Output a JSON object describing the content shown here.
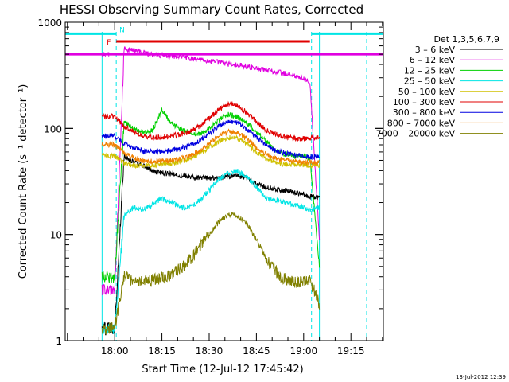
{
  "chart_data": {
    "type": "line",
    "title": "HESSI Observing Summary Count Rates, Corrected",
    "xlabel": "Start Time (12-Jul-12 17:45:42)",
    "ylabel": "Corrected Count Rate (s⁻¹ detector⁻¹)",
    "footer": "13-Jul-2012 12:39",
    "legend_title": "Det 1,3,5,6,7,9",
    "legend_position": "right",
    "y_scale": "log",
    "ylim": [
      1,
      1000
    ],
    "xlim_minutes": [
      -15.7,
      85.3
    ],
    "x_ticks": [
      {
        "t": 0,
        "label": "18:00"
      },
      {
        "t": 15,
        "label": "18:15"
      },
      {
        "t": 30,
        "label": "18:30"
      },
      {
        "t": 45,
        "label": "18:45"
      },
      {
        "t": 60,
        "label": "19:00"
      },
      {
        "t": 75,
        "label": "19:15"
      }
    ],
    "y_ticks": [
      {
        "v": 1,
        "label": "1"
      },
      {
        "v": 10,
        "label": "10"
      },
      {
        "v": 100,
        "label": "100"
      },
      {
        "v": 1000,
        "label": "1000"
      }
    ],
    "x_units_note": "minutes after 18:00 UT",
    "data_window": [
      -4,
      65
    ],
    "flag_bars": [
      {
        "label": "N",
        "color": "#00e5e5",
        "y": 780,
        "segments": [
          [
            -16,
            0.5
          ],
          [
            62.5,
            86
          ]
        ]
      },
      {
        "label": "F",
        "color": "#e00000",
        "y": 660,
        "segments": [
          [
            0.5,
            62
          ]
        ]
      },
      {
        "label": "A1",
        "color": "#e000e0",
        "y": 500,
        "segments": [
          [
            -16,
            86
          ]
        ]
      }
    ],
    "series": [
      {
        "name": "3 – 6 keV",
        "color": "#000000",
        "t": [
          -4,
          0,
          3,
          6,
          9,
          12,
          15,
          18,
          21,
          24,
          27,
          30,
          33,
          36,
          39,
          42,
          45,
          48,
          51,
          54,
          57,
          60,
          62,
          65
        ],
        "v": [
          1.3,
          1.3,
          55,
          48,
          45,
          40,
          38,
          37,
          36,
          35,
          34,
          34,
          34,
          35,
          36,
          34,
          30,
          28,
          27,
          26,
          25,
          24,
          23,
          22
        ]
      },
      {
        "name": "6 – 12 keV",
        "color": "#e000e0",
        "t": [
          -4,
          0,
          3,
          6,
          9,
          12,
          15,
          18,
          21,
          24,
          27,
          30,
          33,
          36,
          39,
          42,
          45,
          48,
          51,
          54,
          57,
          60,
          62,
          65
        ],
        "v": [
          3,
          3,
          560,
          540,
          520,
          500,
          490,
          480,
          470,
          455,
          440,
          430,
          420,
          405,
          395,
          385,
          370,
          355,
          340,
          330,
          315,
          300,
          270,
          9
        ]
      },
      {
        "name": "12 – 25 keV",
        "color": "#00d000",
        "t": [
          -4,
          0,
          3,
          6,
          9,
          12,
          15,
          18,
          21,
          24,
          27,
          30,
          33,
          36,
          39,
          42,
          45,
          48,
          51,
          54,
          57,
          60,
          62,
          65
        ],
        "v": [
          4,
          4,
          115,
          100,
          92,
          95,
          150,
          110,
          98,
          92,
          88,
          100,
          120,
          135,
          128,
          112,
          92,
          75,
          62,
          57,
          55,
          55,
          53,
          5
        ]
      },
      {
        "name": "25 – 50 keV",
        "color": "#00e5e5",
        "t": [
          -4,
          0,
          3,
          6,
          9,
          12,
          15,
          18,
          21,
          24,
          27,
          30,
          33,
          36,
          39,
          42,
          45,
          48,
          51,
          54,
          57,
          60,
          62,
          65
        ],
        "v": [
          1.3,
          1.3,
          15,
          18,
          17,
          19,
          22,
          20,
          18,
          18,
          21,
          26,
          33,
          38,
          40,
          35,
          28,
          22,
          21,
          20,
          19,
          18,
          17,
          18
        ]
      },
      {
        "name": "50 – 100 keV",
        "color": "#d0c000",
        "t": [
          -4,
          0,
          3,
          6,
          9,
          12,
          15,
          18,
          21,
          24,
          27,
          30,
          33,
          36,
          39,
          42,
          45,
          48,
          51,
          54,
          57,
          60,
          62,
          65
        ],
        "v": [
          55,
          55,
          47,
          45,
          44,
          45,
          46,
          47,
          49,
          52,
          58,
          66,
          76,
          82,
          80,
          72,
          60,
          52,
          48,
          46,
          46,
          45,
          45,
          45
        ]
      },
      {
        "name": "100 – 300 keV",
        "color": "#e00000",
        "t": [
          -4,
          0,
          3,
          6,
          9,
          12,
          15,
          18,
          21,
          24,
          27,
          30,
          33,
          36,
          39,
          42,
          45,
          48,
          51,
          54,
          57,
          60,
          62,
          65
        ],
        "v": [
          130,
          130,
          105,
          93,
          85,
          82,
          83,
          85,
          88,
          93,
          105,
          125,
          150,
          172,
          165,
          140,
          115,
          97,
          88,
          83,
          80,
          80,
          80,
          82
        ]
      },
      {
        "name": "300 – 800 keV",
        "color": "#0000e0",
        "t": [
          -4,
          0,
          3,
          6,
          9,
          12,
          15,
          18,
          21,
          24,
          27,
          30,
          33,
          36,
          39,
          42,
          45,
          48,
          51,
          54,
          57,
          60,
          62,
          65
        ],
        "v": [
          85,
          85,
          72,
          66,
          61,
          60,
          61,
          62,
          65,
          69,
          77,
          90,
          105,
          118,
          113,
          98,
          82,
          70,
          62,
          58,
          56,
          55,
          54,
          55
        ]
      },
      {
        "name": "800 – 7000 keV",
        "color": "#f08000",
        "t": [
          -4,
          0,
          3,
          6,
          9,
          12,
          15,
          18,
          21,
          24,
          27,
          30,
          33,
          36,
          39,
          42,
          45,
          48,
          51,
          54,
          57,
          60,
          62,
          65
        ],
        "v": [
          70,
          70,
          58,
          53,
          50,
          49,
          49,
          50,
          52,
          55,
          62,
          72,
          85,
          93,
          90,
          80,
          66,
          57,
          52,
          50,
          49,
          48,
          48,
          48
        ]
      },
      {
        "name": "7000 – 20000 keV",
        "color": "#808000",
        "t": [
          -4,
          0,
          3,
          6,
          9,
          12,
          15,
          18,
          21,
          24,
          27,
          30,
          33,
          36,
          39,
          42,
          45,
          48,
          51,
          54,
          57,
          60,
          62,
          65
        ],
        "v": [
          1.3,
          1.3,
          4,
          3.7,
          3.6,
          3.7,
          3.9,
          4.2,
          4.8,
          5.8,
          7.5,
          10,
          13,
          15.5,
          15,
          12.5,
          9,
          6,
          4.5,
          3.8,
          3.6,
          3.6,
          3.7,
          2.2
        ]
      }
    ]
  }
}
